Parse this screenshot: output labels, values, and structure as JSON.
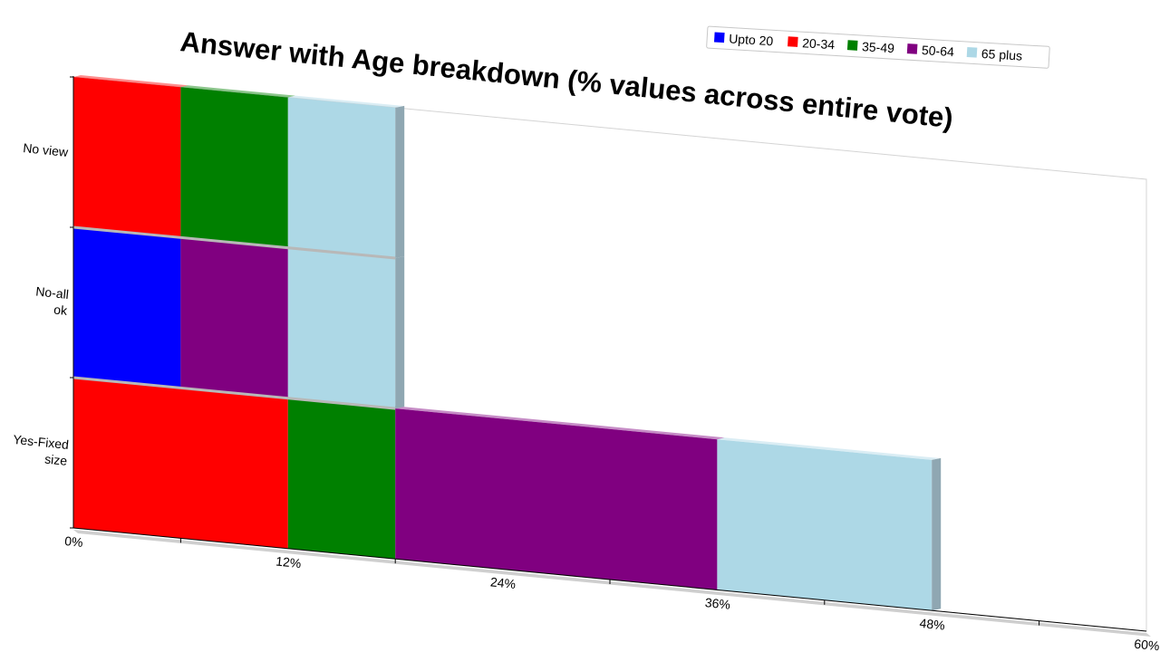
{
  "chart_data": {
    "type": "bar",
    "orientation": "horizontal",
    "stacked": true,
    "title": "Answer with Age breakdown (% values across entire vote)",
    "categories": [
      "Yes-Fixed size",
      "No-all ok",
      "No view"
    ],
    "series": [
      {
        "name": "Upto 20",
        "color": "#0000ff",
        "values": [
          0,
          6,
          0
        ]
      },
      {
        "name": "20-34",
        "color": "#ff0000",
        "values": [
          12,
          0,
          6
        ]
      },
      {
        "name": "35-49",
        "color": "#008000",
        "values": [
          6,
          0,
          6
        ]
      },
      {
        "name": "50-64",
        "color": "#800080",
        "values": [
          18,
          6,
          0
        ]
      },
      {
        "name": "65 plus",
        "color": "#add8e6",
        "values": [
          12,
          6,
          6
        ]
      }
    ],
    "xticks": [
      "0%",
      "12%",
      "24%",
      "36%",
      "48%",
      "60%"
    ],
    "xlim": [
      0,
      60
    ],
    "legend_position": "top-right",
    "grid": false
  }
}
